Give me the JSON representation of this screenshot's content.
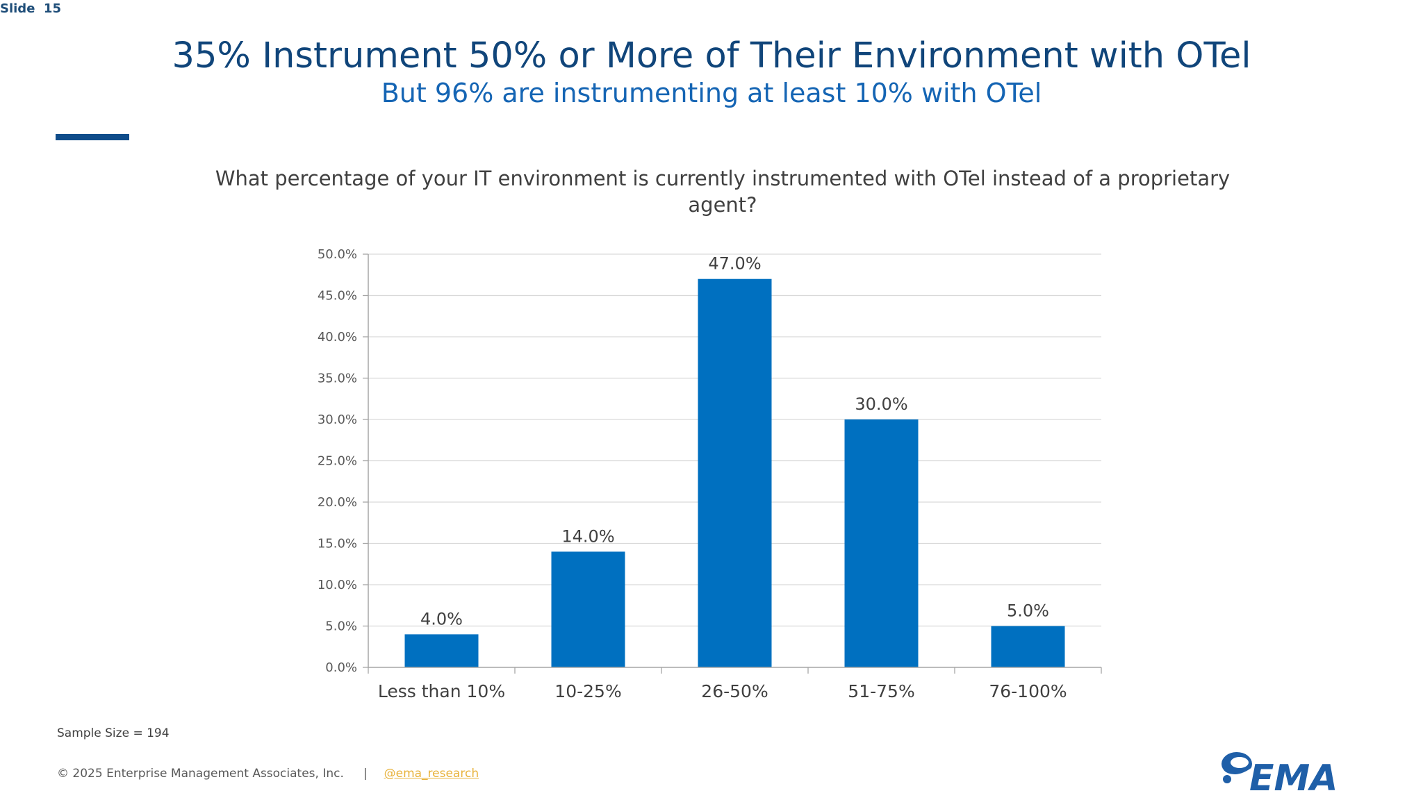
{
  "slide": {
    "label": "Slide  15",
    "title": "35% Instrument 50% or More of Their Environment with OTel",
    "subtitle": "But 96% are instrumenting at least 10% with OTel",
    "question": "What percentage of your IT environment is currently instrumented with OTel instead of a proprietary agent?"
  },
  "chart_data": {
    "type": "bar",
    "title": "",
    "xlabel": "",
    "ylabel": "",
    "categories": [
      "Less than 10%",
      "10-25%",
      "26-50%",
      "51-75%",
      "76-100%"
    ],
    "values": [
      4.0,
      14.0,
      47.0,
      30.0,
      5.0
    ],
    "value_labels": [
      "4.0%",
      "14.0%",
      "47.0%",
      "30.0%",
      "5.0%"
    ],
    "ylim": [
      0,
      50
    ],
    "yticks": [
      0,
      5,
      10,
      15,
      20,
      25,
      30,
      35,
      40,
      45,
      50
    ],
    "ytick_labels": [
      "0.0%",
      "5.0%",
      "10.0%",
      "15.0%",
      "20.0%",
      "25.0%",
      "30.0%",
      "35.0%",
      "40.0%",
      "45.0%",
      "50.0%"
    ],
    "grid": true,
    "legend": "none",
    "bar_color": "#0070c0"
  },
  "footer": {
    "sample_size": "Sample Size = 194",
    "copyright": "© 2025 Enterprise Management Associates, Inc.",
    "separator": "|",
    "handle": "@ema_research",
    "logo_text": "EMA"
  },
  "colors": {
    "title": "#10457a",
    "subtitle": "#1565b4",
    "accent": "#0f4c8a",
    "bar": "#0070c0",
    "link": "#e8b23a"
  }
}
